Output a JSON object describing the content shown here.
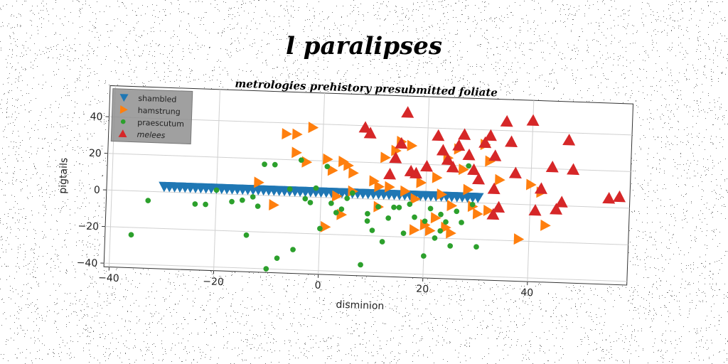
{
  "chart_data": {
    "type": "scatter",
    "title": "l paralipses",
    "subtitle": "metrologies prehistory presubmitted foliate",
    "xlabel": "disminion",
    "ylabel": "pigtails",
    "xlim": [
      -41,
      59
    ],
    "ylim": [
      -42,
      57
    ],
    "xticks": [
      "−40",
      "−20",
      "0",
      "20",
      "40"
    ],
    "xtick_values": [
      -40,
      -20,
      0,
      20,
      40
    ],
    "yticks": [
      "−40",
      "−20",
      "0",
      "20",
      "40"
    ],
    "ytick_values": [
      -40,
      -20,
      0,
      20,
      40
    ],
    "grid": true,
    "legend_position": "top-left",
    "series": [
      {
        "name": "shambled",
        "marker": "triangle-down",
        "color": "#1f77b4",
        "points": [
          [
            -30,
            3
          ],
          [
            -29,
            3
          ],
          [
            -28,
            3
          ],
          [
            -27,
            3
          ],
          [
            -26,
            3
          ],
          [
            -25,
            3
          ],
          [
            -24,
            3
          ],
          [
            -23,
            3
          ],
          [
            -22,
            3
          ],
          [
            -21,
            3
          ],
          [
            -20,
            3
          ],
          [
            -19,
            3
          ],
          [
            -18,
            3
          ],
          [
            -17,
            3
          ],
          [
            -16,
            3
          ],
          [
            -15,
            3
          ],
          [
            -14,
            3
          ],
          [
            -13,
            3
          ],
          [
            -12,
            3
          ],
          [
            -11,
            3
          ],
          [
            -10,
            3
          ],
          [
            -9,
            3
          ],
          [
            -8,
            3
          ],
          [
            -7,
            3
          ],
          [
            -6,
            3
          ],
          [
            -5,
            3
          ],
          [
            -4,
            3
          ],
          [
            -3,
            3
          ],
          [
            -2,
            3
          ],
          [
            -1,
            3
          ],
          [
            0,
            3
          ],
          [
            1,
            3
          ],
          [
            2,
            3
          ],
          [
            3,
            3
          ],
          [
            4,
            3
          ],
          [
            5,
            3
          ],
          [
            6,
            3
          ],
          [
            7,
            3
          ],
          [
            8,
            3
          ],
          [
            9,
            3
          ],
          [
            10,
            3
          ],
          [
            11,
            3
          ],
          [
            12,
            3
          ],
          [
            13,
            3
          ],
          [
            14,
            3
          ],
          [
            15,
            3
          ],
          [
            16,
            3
          ],
          [
            17,
            3
          ],
          [
            18,
            3
          ],
          [
            19,
            3
          ],
          [
            20,
            3
          ],
          [
            21,
            3
          ],
          [
            22,
            3
          ],
          [
            23,
            3
          ],
          [
            24,
            3
          ],
          [
            25,
            3
          ],
          [
            26,
            3
          ],
          [
            27,
            3
          ],
          [
            28,
            3
          ],
          [
            29,
            3
          ],
          [
            30,
            3
          ]
        ]
      },
      {
        "name": "hamstrung",
        "marker": "triangle-right",
        "color": "#ff7f0e",
        "points": [
          [
            -7,
            34
          ],
          [
            -5,
            34
          ],
          [
            -2,
            38
          ],
          [
            -5,
            24
          ],
          [
            -3,
            19
          ],
          [
            1,
            21
          ],
          [
            2,
            15
          ],
          [
            4,
            20
          ],
          [
            5,
            18
          ],
          [
            6,
            14
          ],
          [
            6,
            4
          ],
          [
            -12,
            7
          ],
          [
            -9,
            -5
          ],
          [
            3,
            1
          ],
          [
            4,
            -9
          ],
          [
            1,
            -16
          ],
          [
            10,
            10
          ],
          [
            11,
            7
          ],
          [
            11,
            -4
          ],
          [
            12,
            23
          ],
          [
            13,
            7
          ],
          [
            14,
            27
          ],
          [
            15,
            32
          ],
          [
            16,
            5
          ],
          [
            17,
            30
          ],
          [
            18,
            1
          ],
          [
            18,
            -16
          ],
          [
            19,
            10
          ],
          [
            20,
            -13
          ],
          [
            21,
            -16
          ],
          [
            22,
            13
          ],
          [
            22,
            -9
          ],
          [
            23,
            4
          ],
          [
            24,
            -14
          ],
          [
            24,
            24
          ],
          [
            25,
            -17
          ],
          [
            25,
            -2
          ],
          [
            26,
            29
          ],
          [
            27,
            18
          ],
          [
            28,
            7
          ],
          [
            29,
            -2
          ],
          [
            30,
            -6
          ],
          [
            31,
            32
          ],
          [
            32,
            23
          ],
          [
            32,
            -4
          ],
          [
            34,
            13
          ],
          [
            38,
            -19
          ],
          [
            40,
            11
          ],
          [
            42,
            7
          ],
          [
            43,
            -11
          ]
        ]
      },
      {
        "name": "praescutum",
        "marker": "circle",
        "color": "#2ca02c",
        "points": [
          [
            -36,
            -24
          ],
          [
            -33,
            -5
          ],
          [
            -24,
            -6
          ],
          [
            -22,
            -6
          ],
          [
            -20,
            2
          ],
          [
            -17,
            -4
          ],
          [
            -15,
            -3
          ],
          [
            -14,
            -22
          ],
          [
            -13,
            -1
          ],
          [
            -12,
            -6
          ],
          [
            -11,
            17
          ],
          [
            -10,
            -40
          ],
          [
            -9,
            17
          ],
          [
            -8,
            -34
          ],
          [
            -6,
            4
          ],
          [
            -5,
            -29
          ],
          [
            -4,
            20
          ],
          [
            -3,
            -1
          ],
          [
            -2,
            -3
          ],
          [
            -1,
            5
          ],
          [
            0,
            -17
          ],
          [
            1,
            17
          ],
          [
            2,
            -3
          ],
          [
            3,
            -8
          ],
          [
            4,
            -6
          ],
          [
            5,
            0
          ],
          [
            6,
            3
          ],
          [
            8,
            -36
          ],
          [
            9,
            -12
          ],
          [
            9,
            -8
          ],
          [
            10,
            -17
          ],
          [
            11,
            -4
          ],
          [
            12,
            -23
          ],
          [
            13,
            -10
          ],
          [
            14,
            -4
          ],
          [
            15,
            -4
          ],
          [
            16,
            -18
          ],
          [
            17,
            -2
          ],
          [
            18,
            -9
          ],
          [
            20,
            -11
          ],
          [
            20,
            -30
          ],
          [
            21,
            -4
          ],
          [
            22,
            -20
          ],
          [
            23,
            -7
          ],
          [
            23,
            -16
          ],
          [
            24,
            -11
          ],
          [
            25,
            -24
          ],
          [
            26,
            -5
          ],
          [
            27,
            -11
          ],
          [
            28,
            20
          ],
          [
            29,
            -1
          ],
          [
            30,
            -24
          ]
        ]
      },
      {
        "name": "melees",
        "marker": "triangle-up",
        "color": "#d62728",
        "points": [
          [
            8,
            39
          ],
          [
            9,
            36
          ],
          [
            13,
            14
          ],
          [
            14,
            23
          ],
          [
            15,
            31
          ],
          [
            16,
            48
          ],
          [
            17,
            16
          ],
          [
            18,
            15
          ],
          [
            20,
            19
          ],
          [
            22,
            36
          ],
          [
            23,
            28
          ],
          [
            24,
            23
          ],
          [
            25,
            19
          ],
          [
            26,
            31
          ],
          [
            27,
            37
          ],
          [
            28,
            26
          ],
          [
            29,
            18
          ],
          [
            30,
            13
          ],
          [
            31,
            33
          ],
          [
            32,
            37
          ],
          [
            33,
            8
          ],
          [
            33,
            26
          ],
          [
            33,
            -6
          ],
          [
            34,
            -2
          ],
          [
            35,
            45
          ],
          [
            36,
            34
          ],
          [
            37,
            17
          ],
          [
            40,
            46
          ],
          [
            41,
            -3
          ],
          [
            42,
            9
          ],
          [
            44,
            21
          ],
          [
            45,
            -2
          ],
          [
            46,
            2
          ],
          [
            47,
            36
          ],
          [
            48,
            20
          ],
          [
            55,
            5
          ],
          [
            57,
            6
          ]
        ]
      }
    ]
  }
}
